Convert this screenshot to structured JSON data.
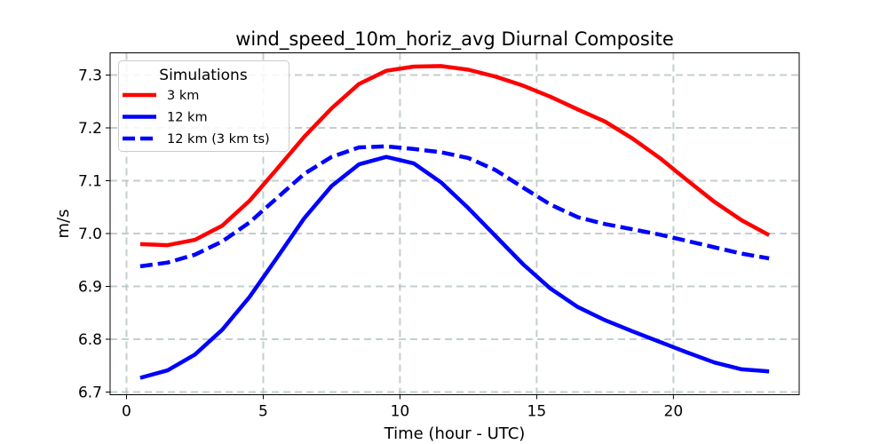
{
  "chart_data": {
    "type": "line",
    "title": "wind_speed_10m_horiz_avg Diurnal Composite",
    "xlabel": "Time (hour - UTC)",
    "ylabel": "m/s",
    "xlim": [
      -0.6,
      24.6
    ],
    "ylim": [
      6.695,
      7.342
    ],
    "xticks": [
      0,
      5,
      10,
      15,
      20
    ],
    "xtick_labels": [
      "0",
      "5",
      "10",
      "15",
      "20"
    ],
    "yticks": [
      6.7,
      6.8,
      6.9,
      7.0,
      7.1,
      7.2,
      7.3
    ],
    "ytick_labels": [
      "6.7",
      "6.8",
      "6.9",
      "7.0",
      "7.1",
      "7.2",
      "7.3"
    ],
    "grid": true,
    "legend": {
      "title": "Simulations",
      "position": "top-left"
    },
    "x": [
      0.5,
      1.5,
      2.5,
      3.5,
      4.5,
      5.5,
      6.5,
      7.5,
      8.5,
      9.5,
      10.5,
      11.5,
      12.5,
      13.5,
      14.5,
      15.5,
      16.5,
      17.5,
      18.5,
      19.5,
      20.5,
      21.5,
      22.5,
      23.5
    ],
    "series": [
      {
        "name": "3 km",
        "color": "#ff0000",
        "dash": "solid",
        "values": [
          6.98,
          6.978,
          6.988,
          7.015,
          7.062,
          7.122,
          7.183,
          7.237,
          7.283,
          7.308,
          7.316,
          7.317,
          7.31,
          7.297,
          7.28,
          7.259,
          7.235,
          7.212,
          7.18,
          7.143,
          7.101,
          7.06,
          7.025,
          6.997
        ]
      },
      {
        "name": "12 km",
        "color": "#0000ff",
        "dash": "solid",
        "values": [
          6.727,
          6.741,
          6.771,
          6.818,
          6.88,
          6.954,
          7.029,
          7.09,
          7.131,
          7.145,
          7.133,
          7.097,
          7.048,
          6.995,
          6.942,
          6.896,
          6.861,
          6.836,
          6.815,
          6.795,
          6.775,
          6.756,
          6.743,
          6.739
        ]
      },
      {
        "name": "12 km (3 km ts)",
        "color": "#0000ff",
        "dash": "dashed",
        "values": [
          6.938,
          6.945,
          6.96,
          6.985,
          7.021,
          7.067,
          7.113,
          7.145,
          7.163,
          7.165,
          7.16,
          7.154,
          7.143,
          7.12,
          7.087,
          7.055,
          7.031,
          7.018,
          7.008,
          6.998,
          6.986,
          6.974,
          6.962,
          6.953
        ]
      }
    ]
  }
}
